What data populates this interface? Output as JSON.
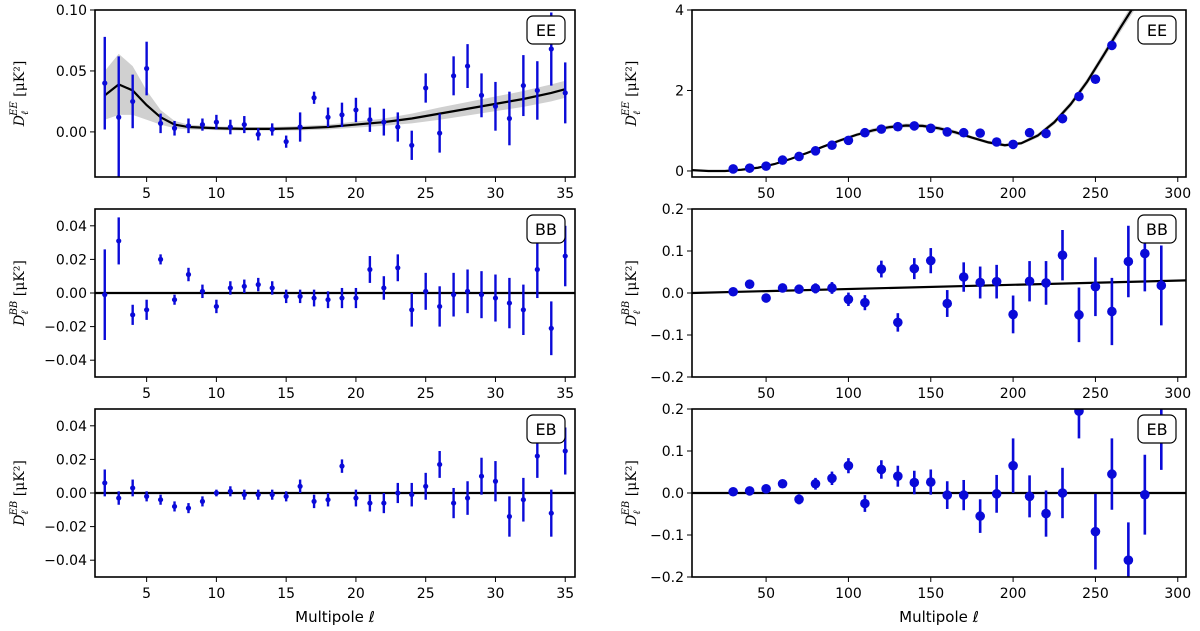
{
  "chart_data": [
    {
      "type": "scatter",
      "panel": "EE-low",
      "badge": "EE",
      "ylabel": "D_ℓ^EE [μK²]",
      "xlabel": "",
      "xlim": [
        1.3,
        35.7
      ],
      "ylim": [
        -0.037,
        0.1
      ],
      "xticks": [
        5,
        10,
        15,
        20,
        25,
        30,
        35
      ],
      "yticks": [
        0.0,
        0.05,
        0.1
      ],
      "ytick_labels": [
        "0.00",
        "0.05",
        "0.10"
      ],
      "marker_size": "small",
      "x": [
        2,
        3,
        4,
        5,
        6,
        7,
        8,
        9,
        10,
        11,
        12,
        13,
        14,
        15,
        16,
        17,
        18,
        19,
        20,
        21,
        22,
        23,
        24,
        25,
        26,
        27,
        28,
        29,
        30,
        31,
        32,
        33,
        34,
        35
      ],
      "y": [
        0.04,
        0.012,
        0.025,
        0.052,
        0.007,
        0.003,
        0.005,
        0.006,
        0.008,
        0.004,
        0.006,
        -0.002,
        0.002,
        -0.008,
        0.004,
        0.028,
        0.012,
        0.014,
        0.018,
        0.01,
        0.008,
        0.004,
        -0.011,
        0.036,
        -0.001,
        0.046,
        0.054,
        0.03,
        0.021,
        0.011,
        0.038,
        0.034,
        0.068,
        0.032
      ],
      "err": [
        0.038,
        0.05,
        0.022,
        0.022,
        0.008,
        0.006,
        0.006,
        0.005,
        0.006,
        0.006,
        0.007,
        0.005,
        0.005,
        0.005,
        0.012,
        0.005,
        0.008,
        0.01,
        0.01,
        0.01,
        0.011,
        0.012,
        0.012,
        0.012,
        0.016,
        0.016,
        0.018,
        0.018,
        0.02,
        0.022,
        0.025,
        0.024,
        0.03,
        0.025
      ],
      "model_x": [
        2,
        3,
        4,
        5,
        6,
        7,
        8,
        10,
        12,
        14,
        16,
        18,
        20,
        22,
        24,
        26,
        28,
        30,
        32,
        34,
        35
      ],
      "model_y": [
        0.03,
        0.039,
        0.034,
        0.022,
        0.012,
        0.006,
        0.004,
        0.003,
        0.0025,
        0.0025,
        0.003,
        0.004,
        0.006,
        0.008,
        0.011,
        0.015,
        0.019,
        0.023,
        0.027,
        0.032,
        0.035
      ],
      "band": [
        0.02,
        0.025,
        0.02,
        0.012,
        0.006,
        0.003,
        0.002,
        0.0015,
        0.0015,
        0.0015,
        0.0018,
        0.002,
        0.0025,
        0.003,
        0.004,
        0.005,
        0.0055,
        0.006,
        0.0065,
        0.007,
        0.007
      ]
    },
    {
      "type": "scatter",
      "panel": "EE-high",
      "badge": "EE",
      "ylabel": "D_ℓ^EE [μK²]",
      "xlabel": "",
      "xlim": [
        5,
        305
      ],
      "ylim": [
        -0.15,
        4
      ],
      "xticks": [
        50,
        100,
        150,
        200,
        250,
        300
      ],
      "yticks": [
        0,
        2,
        4
      ],
      "ytick_labels": [
        "0",
        "2",
        "4"
      ],
      "marker_size": "large",
      "x": [
        30,
        40,
        50,
        60,
        70,
        80,
        90,
        100,
        110,
        120,
        130,
        140,
        150,
        160,
        170,
        180,
        190,
        200,
        210,
        220,
        230,
        240,
        250,
        260
      ],
      "y": [
        0.05,
        0.07,
        0.12,
        0.27,
        0.36,
        0.5,
        0.64,
        0.76,
        0.95,
        1.04,
        1.1,
        1.12,
        1.06,
        0.97,
        0.95,
        0.94,
        0.72,
        0.66,
        0.95,
        0.93,
        1.3,
        1.85,
        2.28,
        3.12
      ],
      "err": [
        0.02,
        0.02,
        0.03,
        0.03,
        0.03,
        0.03,
        0.04,
        0.04,
        0.04,
        0.04,
        0.04,
        0.04,
        0.05,
        0.05,
        0.05,
        0.05,
        0.05,
        0.06,
        0.06,
        0.06,
        0.07,
        0.08,
        0.09,
        0.11
      ],
      "model_x": [
        5,
        15,
        25,
        35,
        45,
        55,
        65,
        75,
        85,
        95,
        105,
        115,
        125,
        135,
        145,
        155,
        165,
        175,
        185,
        195,
        205,
        215,
        225,
        235,
        245,
        255,
        265,
        275
      ],
      "model_y": [
        0.02,
        0.0,
        0.0,
        0.03,
        0.08,
        0.17,
        0.3,
        0.45,
        0.61,
        0.76,
        0.9,
        1.01,
        1.09,
        1.13,
        1.12,
        1.06,
        0.96,
        0.83,
        0.71,
        0.64,
        0.69,
        0.88,
        1.21,
        1.66,
        2.22,
        2.88,
        3.55,
        4.2
      ],
      "band": [
        0.01,
        0.01,
        0.01,
        0.01,
        0.01,
        0.02,
        0.02,
        0.03,
        0.03,
        0.04,
        0.04,
        0.05,
        0.05,
        0.05,
        0.05,
        0.05,
        0.05,
        0.04,
        0.04,
        0.04,
        0.04,
        0.05,
        0.06,
        0.07,
        0.08,
        0.09,
        0.11,
        0.12
      ]
    },
    {
      "type": "scatter",
      "panel": "BB-low",
      "badge": "BB",
      "ylabel": "D_ℓ^BB [μK²]",
      "xlabel": "",
      "xlim": [
        1.3,
        35.7
      ],
      "ylim": [
        -0.05,
        0.05
      ],
      "xticks": [
        5,
        10,
        15,
        20,
        25,
        30,
        35
      ],
      "yticks": [
        -0.04,
        -0.02,
        0.0,
        0.02,
        0.04
      ],
      "ytick_labels": [
        "−0.04",
        "−0.02",
        "0.00",
        "0.02",
        "0.04"
      ],
      "marker_size": "small",
      "x": [
        2,
        3,
        4,
        5,
        6,
        7,
        8,
        9,
        10,
        11,
        12,
        13,
        14,
        15,
        16,
        17,
        18,
        19,
        20,
        21,
        22,
        23,
        24,
        25,
        26,
        27,
        28,
        29,
        30,
        31,
        32,
        33,
        34,
        35
      ],
      "y": [
        -0.001,
        0.031,
        -0.013,
        -0.01,
        0.02,
        -0.004,
        0.011,
        0.001,
        -0.008,
        0.003,
        0.004,
        0.005,
        0.003,
        -0.002,
        -0.002,
        -0.003,
        -0.004,
        -0.003,
        -0.003,
        0.014,
        0.003,
        0.015,
        -0.01,
        0.001,
        -0.008,
        -0.001,
        0.001,
        -0.001,
        -0.003,
        -0.006,
        -0.01,
        0.014,
        -0.021,
        0.022
      ],
      "err": [
        0.027,
        0.014,
        0.006,
        0.006,
        0.003,
        0.003,
        0.004,
        0.004,
        0.004,
        0.004,
        0.004,
        0.004,
        0.004,
        0.004,
        0.004,
        0.005,
        0.005,
        0.006,
        0.006,
        0.008,
        0.007,
        0.008,
        0.01,
        0.011,
        0.012,
        0.013,
        0.013,
        0.014,
        0.014,
        0.015,
        0.015,
        0.017,
        0.016,
        0.018
      ],
      "model_x": [
        1.3,
        35.7
      ],
      "model_y": [
        0.0,
        0.0
      ]
    },
    {
      "type": "scatter",
      "panel": "BB-high",
      "badge": "BB",
      "ylabel": "D_ℓ^BB [μK²]",
      "xlabel": "",
      "xlim": [
        5,
        305
      ],
      "ylim": [
        -0.2,
        0.2
      ],
      "xticks": [
        50,
        100,
        150,
        200,
        250,
        300
      ],
      "yticks": [
        -0.2,
        -0.1,
        0.0,
        0.1,
        0.2
      ],
      "ytick_labels": [
        "−0.2",
        "−0.1",
        "0.0",
        "0.1",
        "0.2"
      ],
      "marker_size": "large",
      "x": [
        30,
        40,
        50,
        60,
        70,
        80,
        90,
        100,
        110,
        120,
        130,
        140,
        150,
        160,
        170,
        180,
        190,
        200,
        210,
        220,
        230,
        240,
        250,
        260,
        270,
        280,
        290
      ],
      "y": [
        0.003,
        0.021,
        -0.012,
        0.012,
        0.009,
        0.011,
        0.012,
        -0.015,
        -0.023,
        0.057,
        -0.07,
        0.058,
        0.077,
        -0.025,
        0.038,
        0.025,
        0.027,
        -0.051,
        0.028,
        0.024,
        0.09,
        -0.052,
        0.015,
        -0.044,
        0.075,
        0.094,
        0.018
      ],
      "err": [
        0.005,
        0.006,
        0.007,
        0.008,
        0.01,
        0.012,
        0.014,
        0.016,
        0.018,
        0.02,
        0.022,
        0.025,
        0.03,
        0.032,
        0.035,
        0.038,
        0.04,
        0.045,
        0.048,
        0.052,
        0.06,
        0.065,
        0.07,
        0.08,
        0.085,
        0.09,
        0.095
      ],
      "model_x": [
        5,
        305
      ],
      "model_y": [
        0.0,
        0.03
      ]
    },
    {
      "type": "scatter",
      "panel": "EB-low",
      "badge": "EB",
      "ylabel": "D_ℓ^EB [μK²]",
      "xlabel": "Multipole ℓ",
      "xlim": [
        1.3,
        35.7
      ],
      "ylim": [
        -0.05,
        0.05
      ],
      "xticks": [
        5,
        10,
        15,
        20,
        25,
        30,
        35
      ],
      "yticks": [
        -0.04,
        -0.02,
        0.0,
        0.02,
        0.04
      ],
      "ytick_labels": [
        "−0.04",
        "−0.02",
        "0.00",
        "0.02",
        "0.04"
      ],
      "marker_size": "small",
      "x": [
        2,
        3,
        4,
        5,
        6,
        7,
        8,
        9,
        10,
        11,
        12,
        13,
        14,
        15,
        16,
        17,
        18,
        19,
        20,
        21,
        22,
        23,
        24,
        25,
        26,
        27,
        28,
        29,
        30,
        31,
        32,
        33,
        34,
        35
      ],
      "y": [
        0.006,
        -0.003,
        0.003,
        -0.002,
        -0.004,
        -0.008,
        -0.009,
        -0.005,
        0.0,
        0.001,
        -0.001,
        -0.001,
        -0.001,
        -0.002,
        0.004,
        -0.005,
        -0.004,
        0.016,
        -0.003,
        -0.006,
        -0.006,
        0.0,
        -0.001,
        0.004,
        0.017,
        -0.006,
        -0.003,
        0.01,
        0.007,
        -0.014,
        -0.004,
        0.022,
        -0.012,
        0.025
      ],
      "err": [
        0.008,
        0.004,
        0.005,
        0.003,
        0.003,
        0.003,
        0.003,
        0.003,
        0.002,
        0.003,
        0.003,
        0.003,
        0.003,
        0.003,
        0.004,
        0.004,
        0.004,
        0.004,
        0.005,
        0.005,
        0.006,
        0.006,
        0.007,
        0.008,
        0.008,
        0.009,
        0.01,
        0.011,
        0.012,
        0.012,
        0.013,
        0.013,
        0.014,
        0.014
      ],
      "model_x": [
        1.3,
        35.7
      ],
      "model_y": [
        0.0,
        0.0
      ]
    },
    {
      "type": "scatter",
      "panel": "EB-high",
      "badge": "EB",
      "ylabel": "D_ℓ^EB [μK²]",
      "xlabel": "Multipole ℓ",
      "xlim": [
        5,
        305
      ],
      "ylim": [
        -0.2,
        0.2
      ],
      "xticks": [
        50,
        100,
        150,
        200,
        250,
        300
      ],
      "yticks": [
        -0.2,
        -0.1,
        0.0,
        0.1,
        0.2
      ],
      "ytick_labels": [
        "−0.2",
        "−0.1",
        "0.0",
        "0.1",
        "0.2"
      ],
      "marker_size": "large",
      "x": [
        30,
        40,
        50,
        60,
        70,
        80,
        90,
        100,
        110,
        120,
        130,
        140,
        150,
        160,
        170,
        180,
        190,
        200,
        210,
        220,
        230,
        240,
        250,
        260,
        270,
        280,
        290
      ],
      "y": [
        0.003,
        0.005,
        0.01,
        0.022,
        -0.015,
        0.022,
        0.035,
        0.065,
        -0.025,
        0.056,
        0.04,
        0.025,
        0.026,
        -0.005,
        -0.005,
        -0.055,
        -0.002,
        0.065,
        -0.008,
        -0.049,
        0.0,
        0.195,
        -0.092,
        0.045,
        -0.16,
        -0.004,
        0.155
      ],
      "err": [
        0.005,
        0.006,
        0.007,
        0.01,
        0.012,
        0.014,
        0.016,
        0.018,
        0.02,
        0.022,
        0.025,
        0.028,
        0.03,
        0.033,
        0.036,
        0.04,
        0.045,
        0.065,
        0.05,
        0.055,
        0.06,
        0.065,
        0.09,
        0.085,
        0.09,
        0.095,
        0.1
      ],
      "model_x": [
        5,
        305
      ],
      "model_y": [
        0.0,
        0.0
      ]
    }
  ],
  "colors": {
    "marker": "#0a0ad8",
    "model": "#000000",
    "band": "#c8c8c8"
  }
}
